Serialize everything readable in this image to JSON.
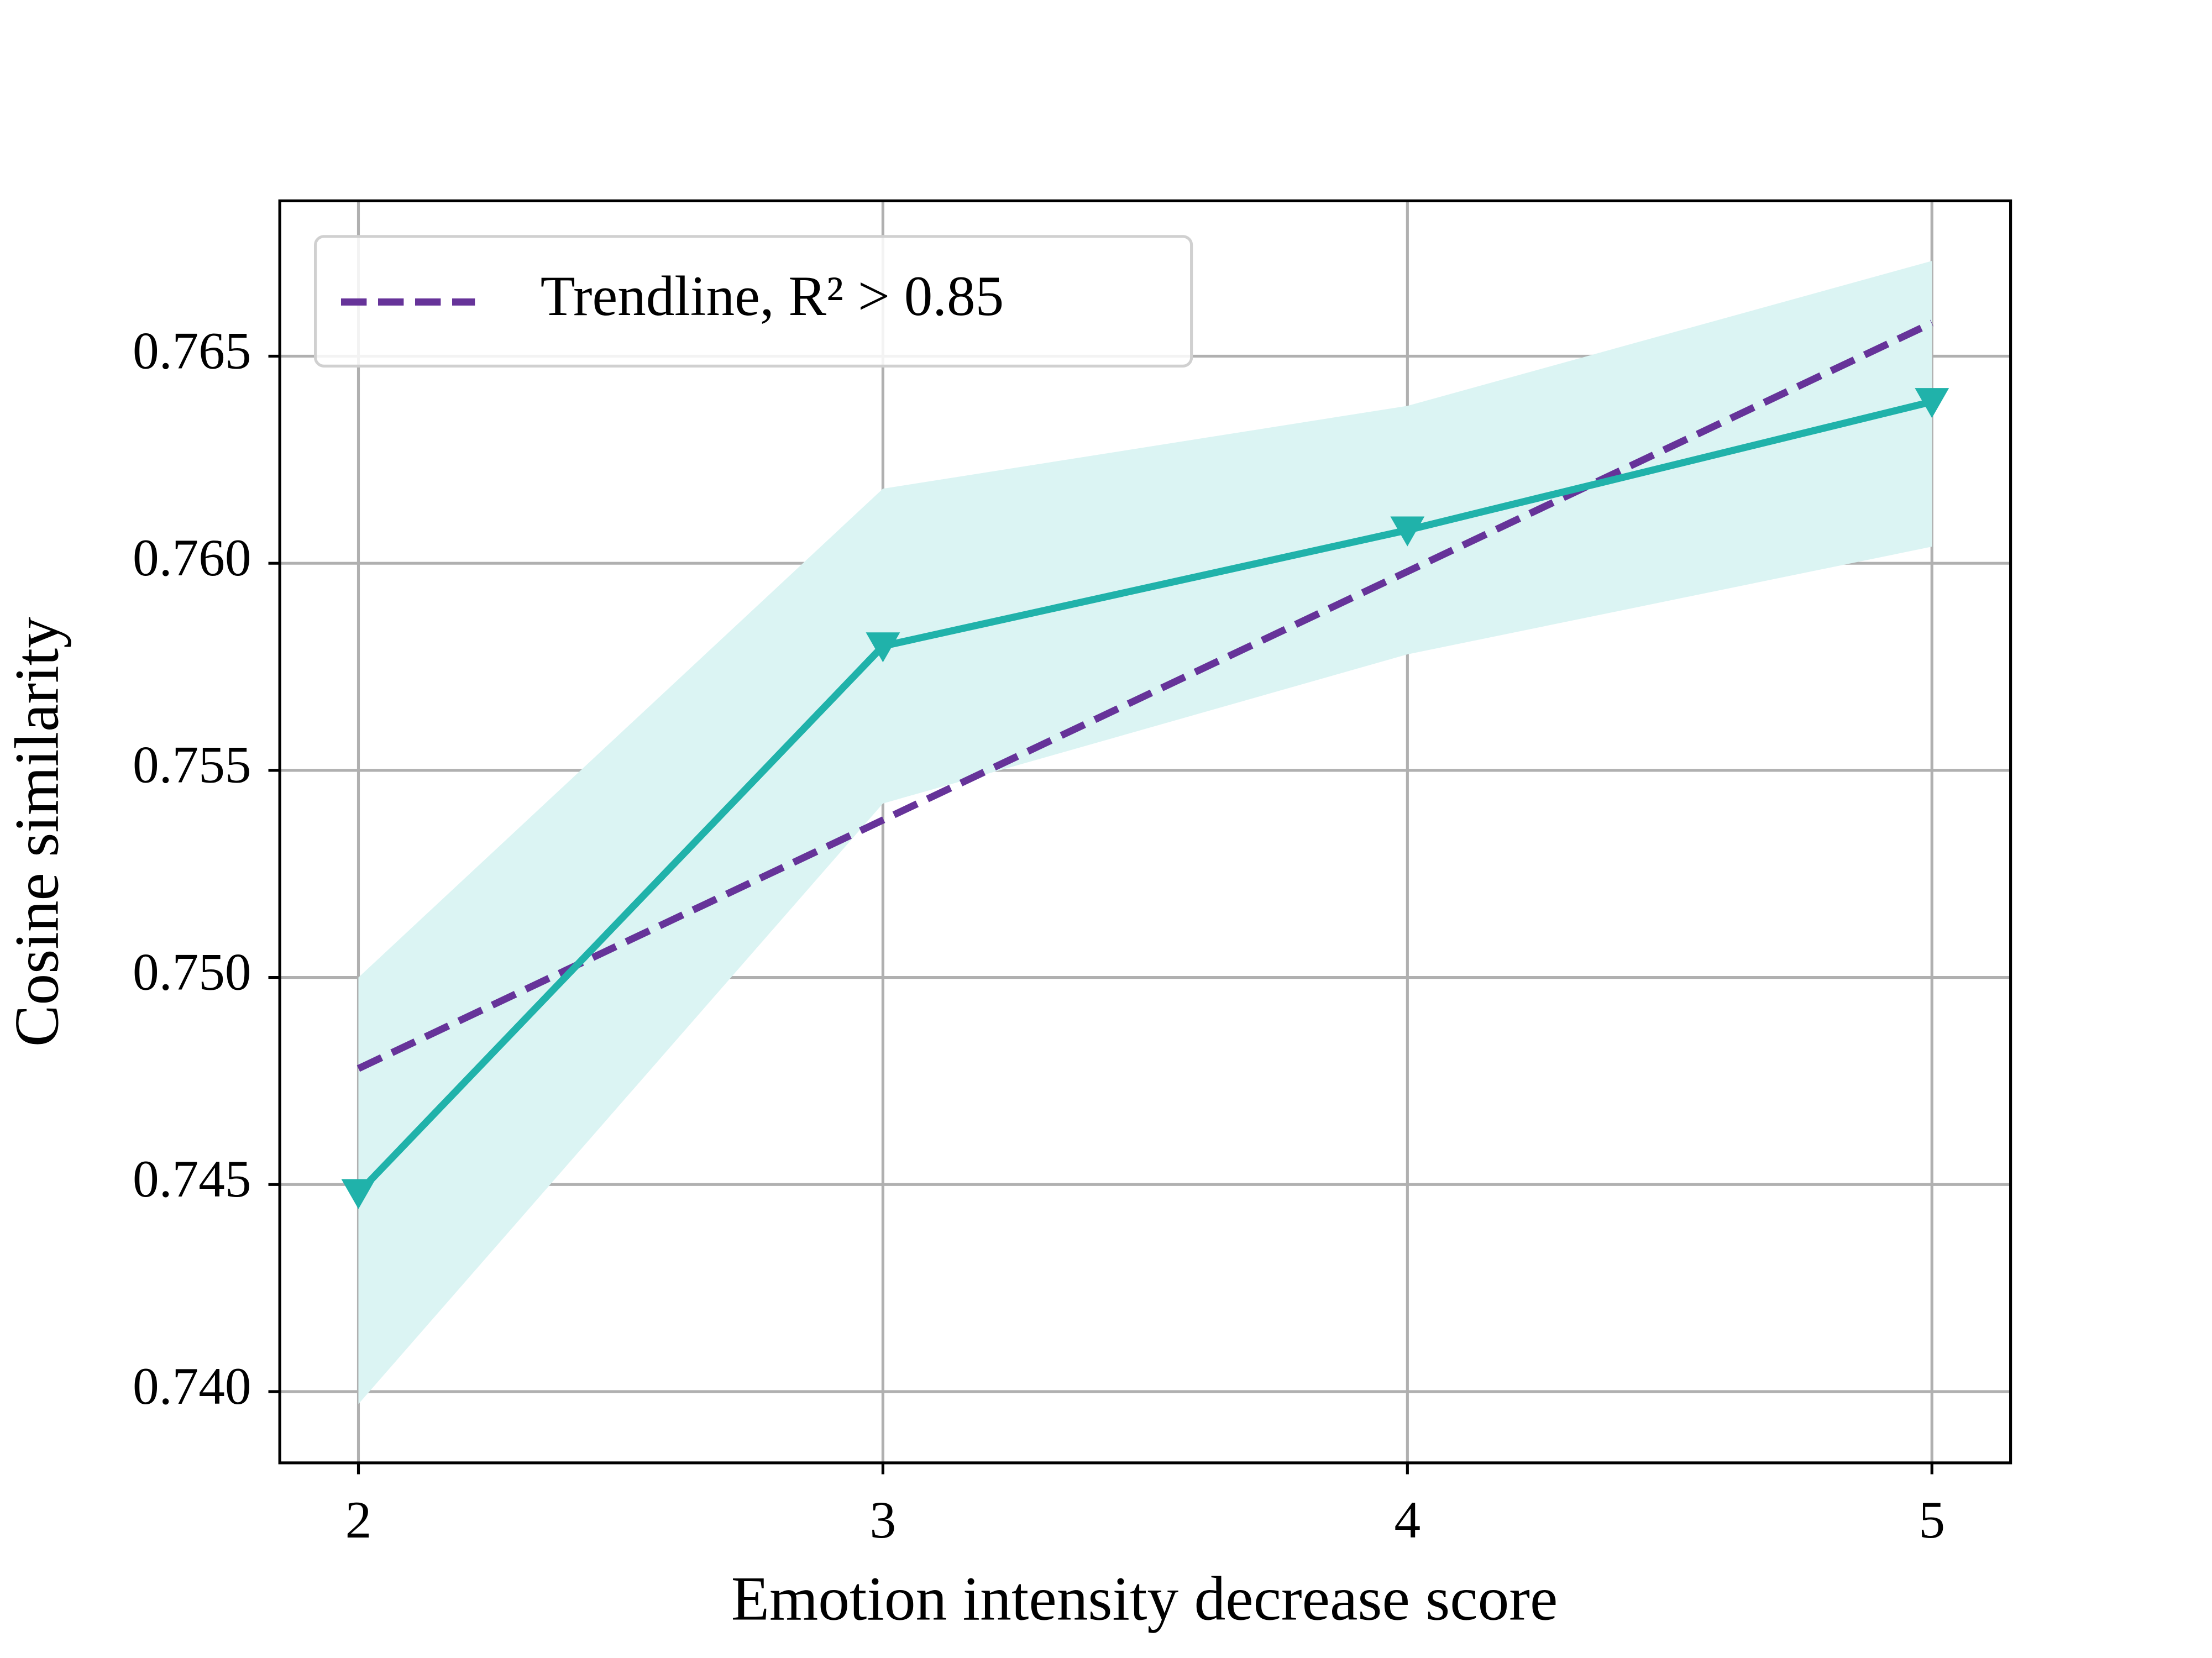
{
  "chart_data": {
    "type": "line",
    "xlabel": "Emotion intensity decrease score",
    "ylabel": "Cosine similarity",
    "x": [
      2,
      3,
      4,
      5
    ],
    "values": [
      0.7448,
      0.758,
      0.7608,
      0.7639
    ],
    "color": "#20b2aa",
    "marker": "v",
    "band_upper": [
      0.75,
      0.7618,
      0.7638,
      0.7673
    ],
    "band_lower": [
      0.7397,
      0.7542,
      0.7578,
      0.7604
    ],
    "band_color": "#dbf4f3",
    "series": [
      {
        "name": "Trendline, R² > 0.85",
        "color": "#663399",
        "dashed": true,
        "values": [
          0.7478,
          0.7538,
          0.7598,
          0.7658
        ]
      }
    ],
    "xlim": [
      1.85,
      5.15
    ],
    "ylim": [
      0.73828,
      0.76875
    ],
    "xticks": [
      2,
      3,
      4,
      5
    ],
    "yticks": [
      {
        "value": 0.74,
        "label": "0.740"
      },
      0.745,
      {
        "value": 0.75,
        "label": "0.750"
      },
      0.755,
      {
        "value": 0.76,
        "label": "0.760"
      },
      0.765
    ],
    "grid": true,
    "legend": "upper left"
  }
}
